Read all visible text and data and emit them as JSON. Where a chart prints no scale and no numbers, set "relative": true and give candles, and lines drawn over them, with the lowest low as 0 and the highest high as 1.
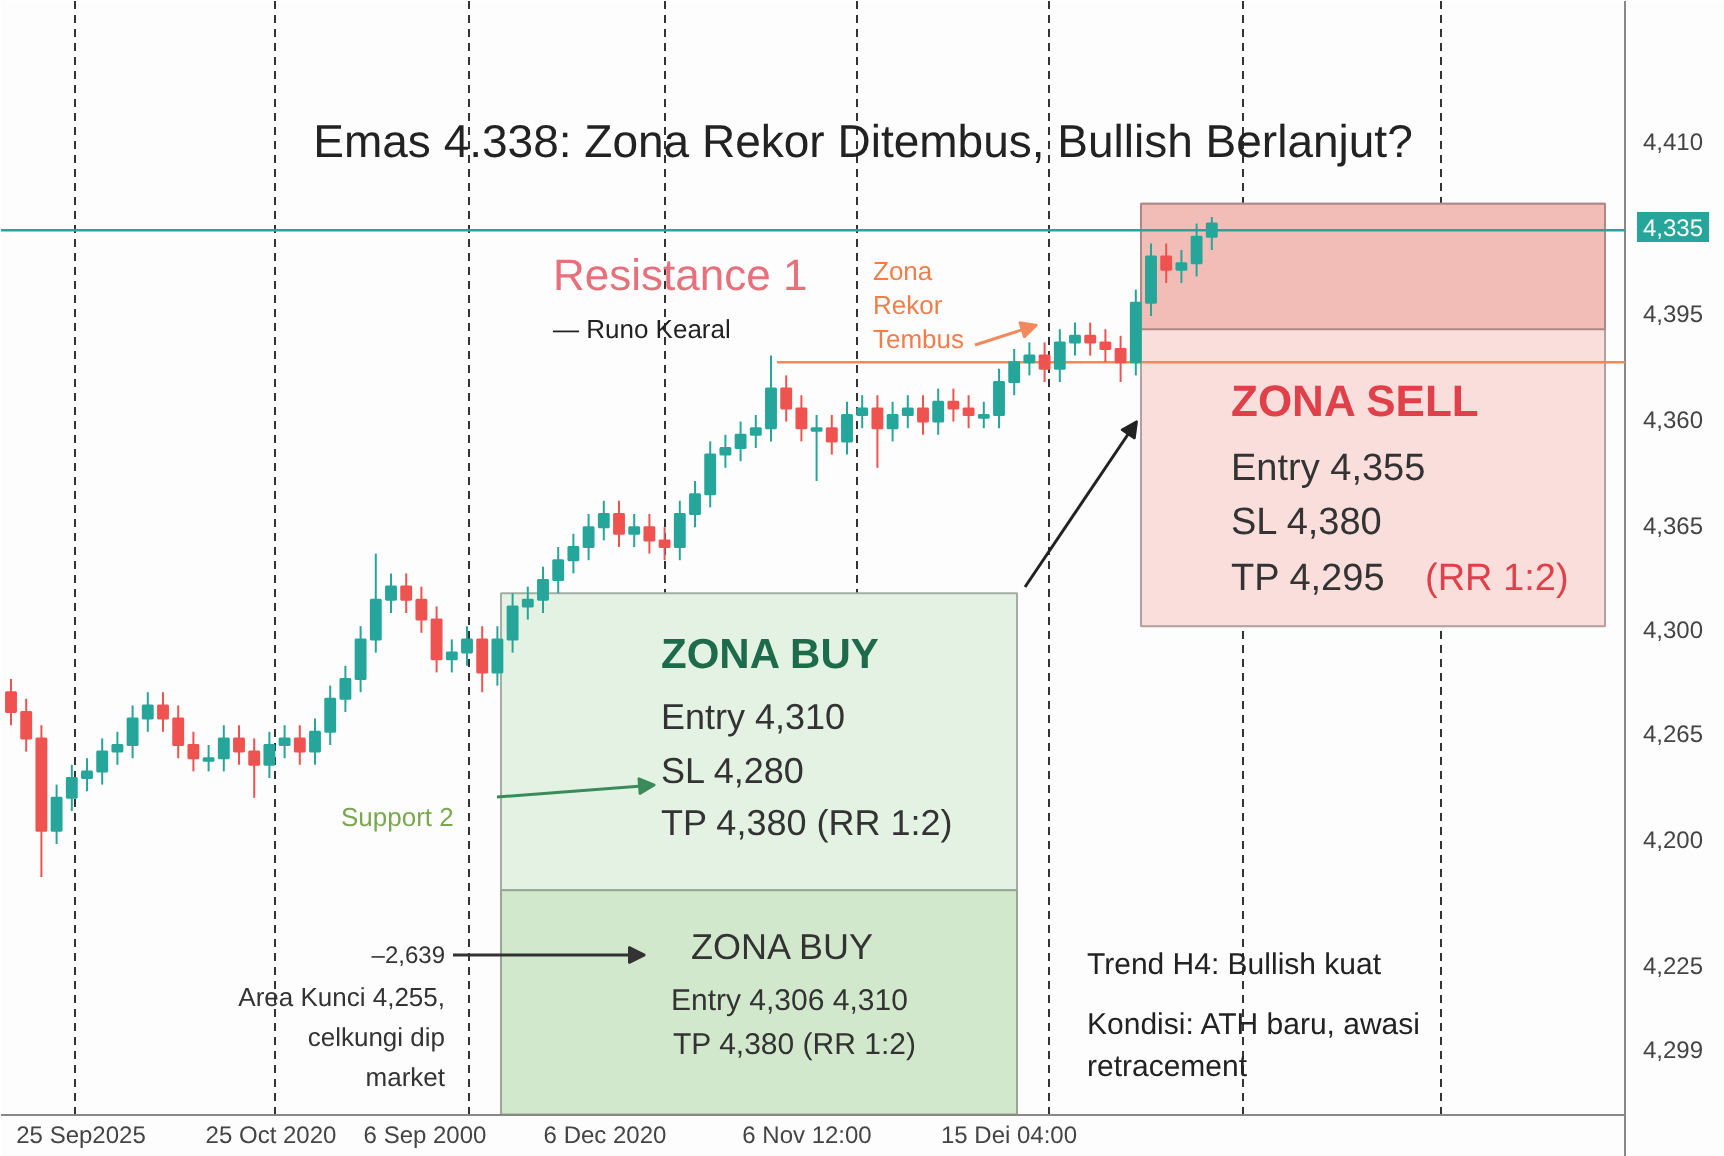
{
  "chart_data": {
    "type": "candlestick",
    "title": "Emas 4.338: Zona Rekor Ditembus, Bullish Berlanjut?",
    "relative": true,
    "categories": [
      null,
      null,
      null,
      null,
      null,
      null,
      null,
      null,
      null,
      null,
      null,
      null,
      null,
      null,
      null,
      null,
      null,
      null,
      null,
      null,
      null,
      null,
      null,
      null,
      null,
      null,
      null,
      null,
      null,
      null,
      null,
      null,
      null,
      null,
      null,
      null,
      null,
      null,
      null,
      null,
      null,
      null,
      null,
      null,
      null,
      null,
      null,
      null,
      null,
      null,
      null,
      null,
      null,
      null,
      null,
      null,
      null,
      null,
      null,
      null,
      null,
      null,
      null,
      null,
      null,
      null,
      null,
      null,
      null,
      null,
      null,
      null,
      null,
      null,
      null,
      null,
      null,
      null,
      null,
      null
    ],
    "ohlc": [
      [
        0.28,
        0.3,
        0.23,
        0.25
      ],
      [
        0.25,
        0.27,
        0.19,
        0.21
      ],
      [
        0.21,
        0.23,
        0.0,
        0.07
      ],
      [
        0.07,
        0.14,
        0.05,
        0.12
      ],
      [
        0.12,
        0.17,
        0.1,
        0.15
      ],
      [
        0.15,
        0.18,
        0.13,
        0.16
      ],
      [
        0.16,
        0.21,
        0.14,
        0.19
      ],
      [
        0.19,
        0.22,
        0.17,
        0.2
      ],
      [
        0.2,
        0.26,
        0.18,
        0.24
      ],
      [
        0.24,
        0.28,
        0.22,
        0.26
      ],
      [
        0.26,
        0.28,
        0.22,
        0.24
      ],
      [
        0.24,
        0.26,
        0.18,
        0.2
      ],
      [
        0.2,
        0.22,
        0.16,
        0.18
      ],
      [
        0.18,
        0.2,
        0.16,
        0.18
      ],
      [
        0.18,
        0.23,
        0.16,
        0.21
      ],
      [
        0.21,
        0.23,
        0.17,
        0.19
      ],
      [
        0.19,
        0.21,
        0.12,
        0.17
      ],
      [
        0.17,
        0.22,
        0.15,
        0.2
      ],
      [
        0.2,
        0.23,
        0.18,
        0.21
      ],
      [
        0.21,
        0.23,
        0.17,
        0.19
      ],
      [
        0.19,
        0.24,
        0.17,
        0.22
      ],
      [
        0.22,
        0.29,
        0.2,
        0.27
      ],
      [
        0.27,
        0.32,
        0.25,
        0.3
      ],
      [
        0.3,
        0.38,
        0.28,
        0.36
      ],
      [
        0.36,
        0.49,
        0.34,
        0.42
      ],
      [
        0.42,
        0.46,
        0.4,
        0.44
      ],
      [
        0.44,
        0.46,
        0.4,
        0.42
      ],
      [
        0.42,
        0.44,
        0.37,
        0.39
      ],
      [
        0.39,
        0.41,
        0.31,
        0.33
      ],
      [
        0.33,
        0.36,
        0.31,
        0.34
      ],
      [
        0.34,
        0.38,
        0.32,
        0.36
      ],
      [
        0.36,
        0.38,
        0.28,
        0.31
      ],
      [
        0.31,
        0.38,
        0.29,
        0.36
      ],
      [
        0.36,
        0.43,
        0.34,
        0.41
      ],
      [
        0.41,
        0.44,
        0.39,
        0.42
      ],
      [
        0.42,
        0.47,
        0.4,
        0.45
      ],
      [
        0.45,
        0.5,
        0.43,
        0.48
      ],
      [
        0.48,
        0.52,
        0.46,
        0.5
      ],
      [
        0.5,
        0.55,
        0.48,
        0.53
      ],
      [
        0.53,
        0.57,
        0.51,
        0.55
      ],
      [
        0.55,
        0.57,
        0.5,
        0.52
      ],
      [
        0.52,
        0.55,
        0.5,
        0.53
      ],
      [
        0.53,
        0.55,
        0.49,
        0.51
      ],
      [
        0.51,
        0.53,
        0.48,
        0.5
      ],
      [
        0.5,
        0.57,
        0.48,
        0.55
      ],
      [
        0.55,
        0.6,
        0.53,
        0.58
      ],
      [
        0.58,
        0.66,
        0.56,
        0.64
      ],
      [
        0.64,
        0.67,
        0.62,
        0.65
      ],
      [
        0.65,
        0.69,
        0.63,
        0.67
      ],
      [
        0.67,
        0.7,
        0.65,
        0.68
      ],
      [
        0.68,
        0.79,
        0.66,
        0.74
      ],
      [
        0.74,
        0.76,
        0.69,
        0.71
      ],
      [
        0.71,
        0.73,
        0.66,
        0.68
      ],
      [
        0.68,
        0.7,
        0.6,
        0.68
      ],
      [
        0.68,
        0.7,
        0.64,
        0.66
      ],
      [
        0.66,
        0.72,
        0.64,
        0.7
      ],
      [
        0.7,
        0.73,
        0.68,
        0.71
      ],
      [
        0.71,
        0.73,
        0.62,
        0.68
      ],
      [
        0.68,
        0.72,
        0.66,
        0.7
      ],
      [
        0.7,
        0.73,
        0.68,
        0.71
      ],
      [
        0.71,
        0.73,
        0.67,
        0.69
      ],
      [
        0.69,
        0.74,
        0.67,
        0.72
      ],
      [
        0.72,
        0.74,
        0.69,
        0.71
      ],
      [
        0.71,
        0.73,
        0.68,
        0.7
      ],
      [
        0.7,
        0.72,
        0.68,
        0.7
      ],
      [
        0.7,
        0.77,
        0.68,
        0.75
      ],
      [
        0.75,
        0.8,
        0.73,
        0.78
      ],
      [
        0.78,
        0.81,
        0.76,
        0.79
      ],
      [
        0.79,
        0.81,
        0.75,
        0.77
      ],
      [
        0.77,
        0.83,
        0.75,
        0.81
      ],
      [
        0.81,
        0.84,
        0.79,
        0.82
      ],
      [
        0.82,
        0.84,
        0.79,
        0.81
      ],
      [
        0.81,
        0.83,
        0.78,
        0.8
      ],
      [
        0.8,
        0.82,
        0.75,
        0.78
      ],
      [
        0.78,
        0.89,
        0.76,
        0.87
      ],
      [
        0.87,
        0.96,
        0.85,
        0.94
      ],
      [
        0.94,
        0.96,
        0.9,
        0.92
      ],
      [
        0.92,
        0.95,
        0.9,
        0.93
      ],
      [
        0.93,
        0.99,
        0.91,
        0.97
      ],
      [
        0.97,
        1.0,
        0.95,
        0.99
      ]
    ],
    "ref_lines": [
      {
        "axis": "y",
        "value": 0.98,
        "color": "#26a69a"
      },
      {
        "axis": "y",
        "value": 0.78,
        "color": "#f08a5d"
      }
    ],
    "bands": [
      {
        "axis": "y",
        "from": 0.38,
        "to": 1.02,
        "color": "#f9dedb"
      },
      {
        "axis": "y",
        "from": 0.83,
        "to": 1.02,
        "color": "#f3bdb7"
      },
      {
        "axis": "y",
        "from": -0.02,
        "to": 0.43,
        "color": "#e3f2e2"
      },
      {
        "axis": "y",
        "from": -0.36,
        "to": -0.02,
        "color": "#d2e8cd"
      }
    ],
    "grid": "x",
    "annotations": [
      "Resistance 1",
      "— Runo Kearal",
      "Zona Rekor Tembus",
      "ZONA SELL",
      "Entry 4,355",
      "SL 4,380",
      "TP 4,295",
      "(RR 1:2)",
      "ZONA BUY",
      "Entry 4,310",
      "SL 4,280",
      "TP 4,380 (RR 1:2)",
      "Support 2",
      "ZONA BUY",
      "Entry 4,306 4,310",
      "TP  4,380 (RR 1:2)",
      "–2,639",
      "Area Kunci 4,255, celkungi dip market",
      "Trend H4: Bullish kuat",
      "Kondisi: ATH baru, awasi retracement",
      "4,410",
      "4,335",
      "4,395",
      "4,360",
      "4,365",
      "4,300",
      "4,265",
      "4,200",
      "4,225",
      "4,299",
      "25 Sep2025",
      "25 Oct 2020",
      "6 Sep 2000",
      "6 Dec 2020",
      "6 Nov 12:00",
      "15 Dei 04:00"
    ]
  }
}
